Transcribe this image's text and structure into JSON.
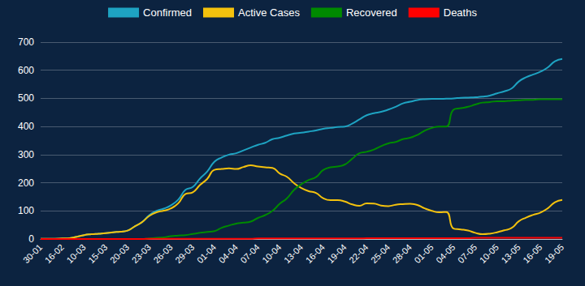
{
  "chart_data": {
    "type": "line",
    "categories": [
      "30-01",
      null,
      null,
      "16-02",
      null,
      null,
      "10-03",
      null,
      null,
      "15-03",
      null,
      null,
      "20-03",
      null,
      null,
      "23-03",
      null,
      null,
      "26-03",
      null,
      null,
      "29-03",
      null,
      null,
      "01-04",
      null,
      null,
      "04-04",
      null,
      null,
      "07-04",
      null,
      null,
      "10-04",
      null,
      null,
      "13-04",
      null,
      null,
      "16-04",
      null,
      null,
      "19-04",
      null,
      null,
      "22-04",
      null,
      null,
      "25-04",
      null,
      null,
      "28-04",
      null,
      null,
      "01-05",
      null,
      null,
      "04-05",
      null,
      null,
      "07-05",
      null,
      null,
      "10-05",
      null,
      null,
      "13-05",
      null,
      null,
      "16-05",
      null,
      null,
      "19-05"
    ],
    "series": [
      {
        "name": "Confirmed",
        "color": "#1ea3c2",
        "values": [
          1,
          1,
          1,
          2,
          3,
          8,
          14,
          17,
          19,
          21,
          24,
          26,
          30,
          45,
          60,
          85,
          100,
          108,
          120,
          140,
          175,
          185,
          215,
          240,
          275,
          290,
          300,
          305,
          315,
          325,
          335,
          342,
          355,
          360,
          368,
          375,
          378,
          382,
          386,
          392,
          395,
          398,
          400,
          410,
          425,
          440,
          447,
          452,
          460,
          470,
          482,
          488,
          494,
          497,
          498,
          498,
          499,
          500,
          502,
          503,
          504,
          506,
          510,
          518,
          525,
          535,
          560,
          575,
          585,
          595,
          610,
          632,
          640
        ]
      },
      {
        "name": "Active Cases",
        "color": "#f4c20d",
        "values": [
          1,
          1,
          1,
          2,
          3,
          8,
          14,
          17,
          19,
          21,
          24,
          26,
          30,
          45,
          60,
          82,
          95,
          101,
          109,
          127,
          160,
          166,
          192,
          214,
          246,
          249,
          251,
          249,
          256,
          262,
          258,
          255,
          253,
          233,
          221,
          198,
          181,
          170,
          164,
          145,
          138,
          138,
          133,
          123,
          118,
          127,
          126,
          119,
          117,
          122,
          124,
          125,
          121,
          109,
          100,
          95,
          96,
          37,
          34,
          30,
          22,
          17,
          19,
          24,
          31,
          39,
          63,
          76,
          86,
          94,
          109,
          131,
          139
        ]
      },
      {
        "name": "Recovered",
        "color": "#008a00",
        "values": [
          0,
          0,
          0,
          0,
          0,
          0,
          0,
          0,
          0,
          0,
          0,
          0,
          0,
          0,
          0,
          2,
          4,
          6,
          10,
          12,
          14,
          18,
          22,
          25,
          28,
          40,
          48,
          55,
          58,
          62,
          75,
          85,
          100,
          125,
          145,
          175,
          195,
          210,
          220,
          245,
          255,
          258,
          265,
          285,
          305,
          310,
          318,
          330,
          340,
          345,
          355,
          360,
          370,
          385,
          395,
          400,
          400,
          460,
          465,
          470,
          478,
          485,
          487,
          490,
          490,
          492,
          493,
          495,
          495,
          497,
          497,
          497,
          497
        ]
      },
      {
        "name": "Deaths",
        "color": "#ff0000",
        "values": [
          0,
          0,
          0,
          0,
          0,
          0,
          0,
          0,
          0,
          0,
          0,
          0,
          0,
          0,
          0,
          1,
          1,
          1,
          1,
          1,
          1,
          1,
          1,
          1,
          1,
          1,
          1,
          1,
          1,
          1,
          2,
          2,
          2,
          2,
          2,
          2,
          2,
          2,
          2,
          2,
          2,
          2,
          2,
          2,
          2,
          3,
          3,
          3,
          3,
          3,
          3,
          3,
          3,
          3,
          3,
          3,
          3,
          3,
          3,
          3,
          4,
          4,
          4,
          4,
          4,
          4,
          4,
          4,
          4,
          4,
          4,
          4,
          4
        ]
      }
    ],
    "ylim": [
      0,
      700
    ],
    "yticks": [
      0,
      100,
      200,
      300,
      400,
      500,
      600,
      700
    ],
    "grid": true,
    "legend": "top"
  }
}
